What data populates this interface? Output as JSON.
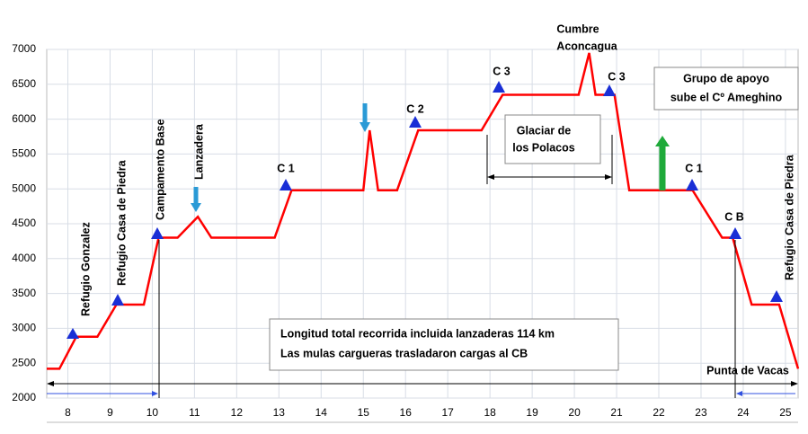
{
  "chart_data": {
    "type": "line",
    "x": [
      7.5,
      7.8,
      8.2,
      8.7,
      9.15,
      9.8,
      10.15,
      10.6,
      11.08,
      11.4,
      12.9,
      13.3,
      15.0,
      15.15,
      15.35,
      15.8,
      16.3,
      17.8,
      18.3,
      20.1,
      20.35,
      20.5,
      20.95,
      21.3,
      22.8,
      23.5,
      23.75,
      24.2,
      24.85,
      25.3
    ],
    "values": [
      2420,
      2420,
      2880,
      2880,
      3340,
      3340,
      4300,
      4300,
      4600,
      4300,
      4300,
      4980,
      4980,
      5840,
      4980,
      4980,
      5840,
      5840,
      6350,
      6350,
      6950,
      6350,
      6350,
      4980,
      4980,
      4300,
      4300,
      3340,
      3340,
      2420
    ],
    "color": "#ff0000",
    "xlim": [
      7.5,
      25.3
    ],
    "xticks": [
      8,
      9,
      10,
      11,
      12,
      13,
      14,
      15,
      16,
      17,
      18,
      19,
      20,
      21,
      22,
      23,
      24,
      25
    ],
    "ylim": [
      2000,
      7000
    ],
    "yticks": [
      2000,
      2500,
      3000,
      3500,
      4000,
      4500,
      5000,
      5500,
      6000,
      6500,
      7000
    ],
    "grid": true,
    "annotations": [
      "Refugio Gonzalez",
      "Refugio Casa de Piedra",
      "Campamento Base",
      "Lanzadera",
      "C 1",
      "C 2",
      "C 3",
      "Cumbre",
      "Aconcagua",
      "C 3",
      "Glaciar de",
      "los Polacos",
      "Grupo de apoyo",
      "sube el Cº Ameghino",
      "C 1",
      "C B",
      "Refugio Casa  de Piedra",
      "Longitud total recorrida incluida lanzaderas 114 km",
      "Las mulas cargueras trasladaron cargas al CB",
      "Punta de Vacas"
    ]
  }
}
